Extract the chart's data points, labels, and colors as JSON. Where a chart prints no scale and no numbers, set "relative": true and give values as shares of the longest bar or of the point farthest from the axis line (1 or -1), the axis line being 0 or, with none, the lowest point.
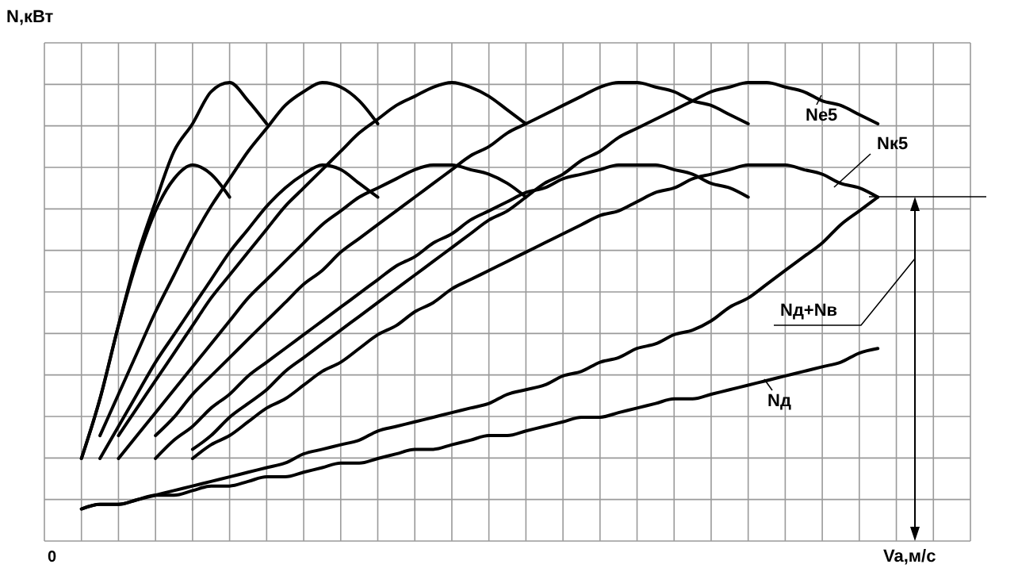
{
  "chart_data": {
    "type": "line",
    "relative": true,
    "grid": true,
    "xlabel": "Va,м/с",
    "ylabel": "N,кВт",
    "annotations": [
      "0"
    ],
    "categories": [
      null,
      null,
      null,
      null,
      null,
      null,
      null,
      null,
      null,
      null,
      null,
      null,
      null,
      null,
      null,
      null,
      null,
      null,
      null,
      null,
      null,
      null,
      null,
      null,
      null,
      null,
      null,
      null,
      null,
      null,
      null,
      null,
      null,
      null,
      null,
      null,
      null,
      null,
      null,
      null,
      null,
      null,
      null,
      null,
      null,
      null,
      null,
      null,
      null,
      null,
      null
    ],
    "series": [
      {
        "color": "#000000",
        "values": [
          null,
          null,
          0.18,
          0.31,
          0.47,
          0.62,
          0.74,
          0.85,
          0.91,
          0.98,
          1,
          0.96,
          0.91,
          null,
          null,
          null,
          null,
          null,
          null,
          null,
          null,
          null,
          null,
          null,
          null,
          null,
          null,
          null,
          null,
          null,
          null,
          null,
          null,
          null,
          null,
          null,
          null,
          null,
          null,
          null,
          null,
          null,
          null,
          null,
          null,
          null,
          null,
          null,
          null,
          null,
          null
        ]
      },
      {
        "color": "#000000",
        "values": [
          null,
          null,
          0.18,
          0.31,
          0.47,
          0.61,
          0.72,
          0.79,
          0.82,
          0.8,
          0.75,
          null,
          null,
          null,
          null,
          null,
          null,
          null,
          null,
          null,
          null,
          null,
          null,
          null,
          null,
          null,
          null,
          null,
          null,
          null,
          null,
          null,
          null,
          null,
          null,
          null,
          null,
          null,
          null,
          null,
          null,
          null,
          null,
          null,
          null,
          null,
          null,
          null,
          null,
          null,
          null
        ]
      },
      {
        "color": "#000000",
        "values": [
          null,
          null,
          null,
          0.23,
          0.32,
          0.41,
          0.5,
          0.58,
          0.66,
          0.73,
          0.79,
          0.85,
          0.9,
          0.95,
          0.98,
          1,
          0.99,
          0.96,
          0.91,
          null,
          null,
          null,
          null,
          null,
          null,
          null,
          null,
          null,
          null,
          null,
          null,
          null,
          null,
          null,
          null,
          null,
          null,
          null,
          null,
          null,
          null,
          null,
          null,
          null,
          null,
          null,
          null,
          null,
          null,
          null,
          null
        ]
      },
      {
        "color": "#000000",
        "values": [
          null,
          null,
          null,
          0.18,
          0.25,
          0.32,
          0.39,
          0.45,
          0.51,
          0.57,
          0.63,
          0.68,
          0.73,
          0.77,
          0.8,
          0.82,
          0.81,
          0.78,
          0.75,
          null,
          null,
          null,
          null,
          null,
          null,
          null,
          null,
          null,
          null,
          null,
          null,
          null,
          null,
          null,
          null,
          null,
          null,
          null,
          null,
          null,
          null,
          null,
          null,
          null,
          null,
          null,
          null,
          null,
          null,
          null,
          null
        ]
      },
      {
        "color": "#000000",
        "values": [
          null,
          null,
          null,
          null,
          0.23,
          0.29,
          0.35,
          0.41,
          0.47,
          0.53,
          0.58,
          0.63,
          0.68,
          0.73,
          0.77,
          0.81,
          0.85,
          0.89,
          0.92,
          0.95,
          0.97,
          0.99,
          1,
          0.99,
          0.97,
          0.94,
          0.91,
          null,
          null,
          null,
          null,
          null,
          null,
          null,
          null,
          null,
          null,
          null,
          null,
          null,
          null,
          null,
          null,
          null,
          null,
          null,
          null,
          null,
          null,
          null,
          null
        ]
      },
      {
        "color": "#000000",
        "values": [
          null,
          null,
          null,
          null,
          0.18,
          0.23,
          0.28,
          0.33,
          0.38,
          0.43,
          0.48,
          0.53,
          0.57,
          0.61,
          0.65,
          0.69,
          0.72,
          0.75,
          0.77,
          0.79,
          0.81,
          0.82,
          0.82,
          0.81,
          0.8,
          0.78,
          0.75,
          null,
          null,
          null,
          null,
          null,
          null,
          null,
          null,
          null,
          null,
          null,
          null,
          null,
          null,
          null,
          null,
          null,
          null,
          null,
          null,
          null,
          null,
          null,
          null
        ]
      },
      {
        "color": "#000000",
        "values": [
          null,
          null,
          null,
          null,
          null,
          null,
          0.23,
          0.27,
          0.32,
          0.36,
          0.4,
          0.44,
          0.48,
          0.52,
          0.56,
          0.59,
          0.63,
          0.66,
          0.69,
          0.72,
          0.75,
          0.78,
          0.81,
          0.84,
          0.86,
          0.89,
          0.91,
          0.93,
          0.95,
          0.97,
          0.99,
          1,
          1,
          0.99,
          0.98,
          0.96,
          0.95,
          0.93,
          0.91,
          null,
          null,
          null,
          null,
          null,
          null,
          null,
          null,
          null,
          null,
          null,
          null
        ]
      },
      {
        "color": "#000000",
        "values": [
          null,
          null,
          null,
          null,
          null,
          null,
          0.18,
          0.22,
          0.25,
          0.29,
          0.32,
          0.36,
          0.39,
          0.42,
          0.45,
          0.48,
          0.51,
          0.54,
          0.57,
          0.6,
          0.62,
          0.65,
          0.67,
          0.7,
          0.72,
          0.74,
          0.76,
          0.77,
          0.79,
          0.8,
          0.81,
          0.82,
          0.82,
          0.82,
          0.81,
          0.8,
          0.78,
          0.77,
          0.75,
          null,
          null,
          null,
          null,
          null,
          null,
          null,
          null,
          null,
          null,
          null,
          null
        ]
      },
      {
        "name": "Ne5",
        "color": "#000000",
        "values": [
          null,
          null,
          null,
          null,
          null,
          null,
          null,
          null,
          0.2,
          0.23,
          0.27,
          0.3,
          0.33,
          0.37,
          0.4,
          0.43,
          0.46,
          0.49,
          0.52,
          0.55,
          0.58,
          0.61,
          0.64,
          0.67,
          0.7,
          0.72,
          0.75,
          0.78,
          0.8,
          0.83,
          0.85,
          0.88,
          0.9,
          0.92,
          0.94,
          0.96,
          0.98,
          0.99,
          1,
          1,
          0.99,
          0.98,
          0.96,
          0.95,
          0.93,
          0.91,
          null,
          null,
          null,
          null,
          null
        ]
      },
      {
        "name": "Nк5",
        "color": "#000000",
        "values": [
          null,
          null,
          null,
          null,
          null,
          null,
          null,
          null,
          0.18,
          0.21,
          0.23,
          0.26,
          0.29,
          0.31,
          0.34,
          0.37,
          0.39,
          0.42,
          0.45,
          0.47,
          0.5,
          0.52,
          0.55,
          0.57,
          0.59,
          0.61,
          0.63,
          0.65,
          0.67,
          0.69,
          0.71,
          0.72,
          0.74,
          0.76,
          0.77,
          0.79,
          0.8,
          0.81,
          0.82,
          0.82,
          0.82,
          0.81,
          0.8,
          0.78,
          0.77,
          0.75,
          null,
          null,
          null,
          null,
          null
        ]
      },
      {
        "name": "Nд+Nв",
        "color": "#000000",
        "values": [
          null,
          null,
          0.07,
          0.08,
          0.08,
          0.09,
          0.1,
          0.11,
          0.12,
          0.13,
          0.14,
          0.15,
          0.16,
          0.17,
          0.19,
          0.2,
          0.21,
          0.22,
          0.24,
          0.25,
          0.26,
          0.27,
          0.28,
          0.29,
          0.3,
          0.32,
          0.33,
          0.34,
          0.36,
          0.37,
          0.39,
          0.4,
          0.42,
          0.43,
          0.45,
          0.46,
          0.48,
          0.51,
          0.53,
          0.56,
          0.59,
          0.62,
          0.65,
          0.69,
          0.72,
          0.75,
          null,
          null,
          null,
          null,
          null
        ]
      },
      {
        "name": "Nд",
        "color": "#000000",
        "values": [
          null,
          null,
          0.07,
          0.08,
          0.08,
          0.09,
          0.1,
          0.1,
          0.11,
          0.12,
          0.12,
          0.13,
          0.14,
          0.14,
          0.15,
          0.16,
          0.17,
          0.17,
          0.18,
          0.19,
          0.2,
          0.2,
          0.21,
          0.22,
          0.23,
          0.23,
          0.24,
          0.25,
          0.26,
          0.27,
          0.27,
          0.28,
          0.29,
          0.3,
          0.31,
          0.31,
          0.32,
          0.33,
          0.34,
          0.35,
          0.36,
          0.37,
          0.38,
          0.39,
          0.41,
          0.42,
          null,
          null,
          null,
          null,
          null
        ]
      }
    ]
  }
}
